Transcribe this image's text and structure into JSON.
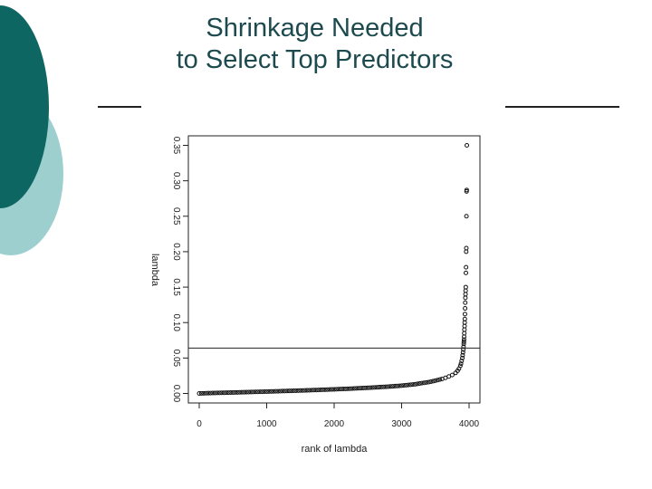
{
  "slide": {
    "title_line1": "Shrinkage Needed",
    "title_line2": "to Select Top Predictors",
    "accent_dark": "#0e6663",
    "accent_light": "#9ecfcf",
    "title_color": "#1c4a4e"
  },
  "chart_data": {
    "type": "scatter",
    "title": "",
    "xlabel": "rank of lambda",
    "ylabel": "lambda",
    "xlim": [
      0,
      4000
    ],
    "ylim": [
      0,
      0.35
    ],
    "x_ticks": [
      "0",
      "1000",
      "2000",
      "3000",
      "4000"
    ],
    "y_ticks": [
      "0.00",
      "0.05",
      "0.10",
      "0.15",
      "0.20",
      "0.25",
      "0.30",
      "0.35"
    ],
    "reference_line_y": 0.064,
    "grid": false,
    "series": [
      {
        "marker": "open-circle",
        "points": [
          [
            0,
            0.0
          ],
          [
            100,
            0.0003
          ],
          [
            200,
            0.0006
          ],
          [
            400,
            0.0011
          ],
          [
            600,
            0.0016
          ],
          [
            800,
            0.0021
          ],
          [
            1000,
            0.0026
          ],
          [
            1200,
            0.0032
          ],
          [
            1400,
            0.0038
          ],
          [
            1600,
            0.0044
          ],
          [
            1800,
            0.0051
          ],
          [
            2000,
            0.0058
          ],
          [
            2200,
            0.0066
          ],
          [
            2400,
            0.0075
          ],
          [
            2600,
            0.0085
          ],
          [
            2800,
            0.0096
          ],
          [
            3000,
            0.011
          ],
          [
            3100,
            0.012
          ],
          [
            3200,
            0.013
          ],
          [
            3300,
            0.0145
          ],
          [
            3400,
            0.016
          ],
          [
            3500,
            0.018
          ],
          [
            3600,
            0.0205
          ],
          [
            3650,
            0.022
          ],
          [
            3700,
            0.024
          ],
          [
            3750,
            0.026
          ],
          [
            3800,
            0.029
          ],
          [
            3830,
            0.032
          ],
          [
            3850,
            0.035
          ],
          [
            3870,
            0.039
          ],
          [
            3880,
            0.042
          ],
          [
            3890,
            0.046
          ],
          [
            3900,
            0.05
          ],
          [
            3905,
            0.054
          ],
          [
            3910,
            0.058
          ],
          [
            3915,
            0.062
          ],
          [
            3918,
            0.066
          ],
          [
            3921,
            0.07
          ],
          [
            3923,
            0.073
          ],
          [
            3925,
            0.076
          ],
          [
            3927,
            0.08
          ],
          [
            3929,
            0.085
          ],
          [
            3931,
            0.09
          ],
          [
            3933,
            0.095
          ],
          [
            3935,
            0.1
          ],
          [
            3937,
            0.105
          ],
          [
            3939,
            0.112
          ],
          [
            3941,
            0.12
          ],
          [
            3943,
            0.128
          ],
          [
            3945,
            0.135
          ],
          [
            3947,
            0.14
          ],
          [
            3949,
            0.145
          ],
          [
            3951,
            0.15
          ],
          [
            3953,
            0.17
          ],
          [
            3955,
            0.178
          ],
          [
            3957,
            0.2
          ],
          [
            3959,
            0.205
          ],
          [
            3961,
            0.25
          ],
          [
            3963,
            0.285
          ],
          [
            3965,
            0.287
          ],
          [
            3967,
            0.35
          ]
        ]
      }
    ]
  }
}
